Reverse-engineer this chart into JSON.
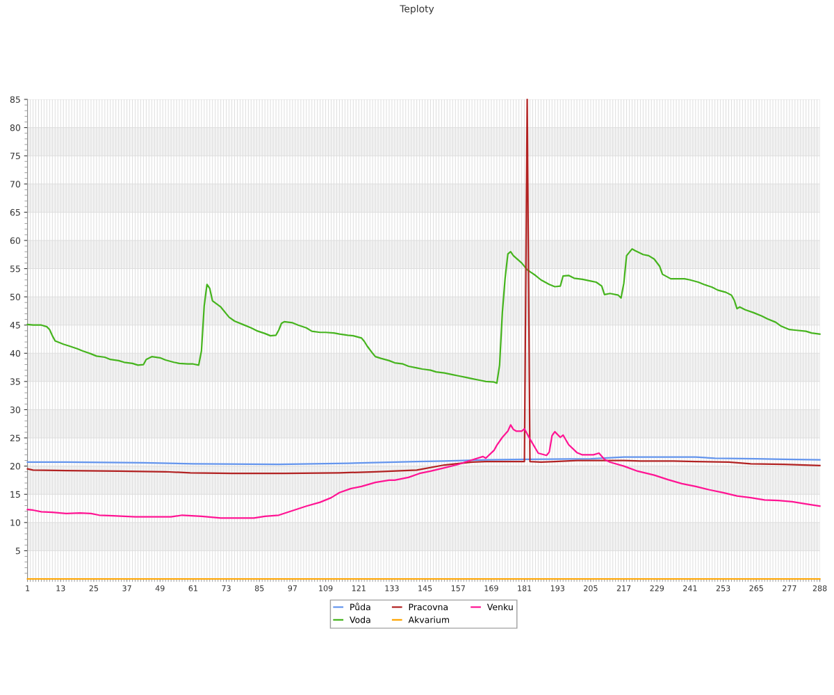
{
  "chart_data": {
    "type": "line",
    "title": "Teploty",
    "xlim": [
      1,
      288
    ],
    "xticks": [
      1,
      13,
      25,
      37,
      49,
      61,
      73,
      85,
      97,
      109,
      121,
      133,
      145,
      157,
      169,
      181,
      193,
      205,
      217,
      229,
      241,
      253,
      265,
      277,
      288
    ],
    "ylim": [
      0,
      85
    ],
    "yticks": [
      5,
      10,
      15,
      20,
      25,
      30,
      35,
      40,
      45,
      50,
      55,
      60,
      65,
      70,
      75,
      80,
      85
    ],
    "grid": true,
    "legend": "bottom",
    "marker": "none",
    "line_style": "solid",
    "series": [
      {
        "name": "Půda",
        "color": "#6495ed",
        "x": [
          1,
          15,
          43,
          61,
          92,
          117,
          142,
          152,
          167,
          182,
          205,
          217,
          243,
          250,
          265,
          275,
          288
        ],
        "values": [
          20.7,
          20.7,
          20.6,
          20.4,
          20.3,
          20.5,
          20.8,
          20.9,
          21.1,
          21.2,
          21.3,
          21.6,
          21.6,
          21.4,
          21.3,
          21.2,
          21.1
        ]
      },
      {
        "name": "Voda",
        "color": "#46b41e",
        "x": [
          1,
          3,
          6,
          8,
          9,
          10,
          11,
          14,
          16,
          19,
          21,
          24,
          26,
          29,
          31,
          34,
          36,
          39,
          41,
          43,
          44,
          46,
          49,
          51,
          54,
          56,
          59,
          61,
          63,
          64,
          65,
          66,
          67,
          68,
          71,
          74,
          76,
          79,
          82,
          84,
          87,
          89,
          91,
          92,
          93,
          94,
          97,
          99,
          102,
          104,
          107,
          109,
          112,
          114,
          117,
          119,
          122,
          123,
          124,
          126,
          127,
          129,
          132,
          134,
          137,
          139,
          142,
          144,
          147,
          149,
          152,
          155,
          157,
          160,
          162,
          165,
          167,
          170,
          171,
          172,
          173,
          174,
          175,
          176,
          177,
          180,
          182,
          185,
          187,
          190,
          192,
          194,
          195,
          197,
          199,
          202,
          205,
          207,
          209,
          210,
          212,
          215,
          216,
          217,
          218,
          220,
          221,
          224,
          226,
          228,
          230,
          231,
          234,
          236,
          239,
          241,
          244,
          246,
          249,
          251,
          254,
          256,
          257,
          258,
          259,
          261,
          264,
          267,
          269,
          272,
          274,
          277,
          279,
          283,
          285,
          288
        ],
        "values": [
          45.1,
          45.0,
          45.0,
          44.7,
          44.2,
          43.1,
          42.2,
          41.6,
          41.3,
          40.8,
          40.4,
          39.9,
          39.5,
          39.3,
          38.9,
          38.7,
          38.4,
          38.2,
          37.9,
          38.0,
          38.9,
          39.4,
          39.2,
          38.8,
          38.4,
          38.2,
          38.1,
          38.1,
          37.9,
          40.4,
          48.4,
          52.2,
          51.5,
          49.3,
          48.2,
          46.4,
          45.7,
          45.1,
          44.5,
          44.0,
          43.5,
          43.1,
          43.2,
          44.1,
          45.3,
          45.6,
          45.4,
          45.0,
          44.5,
          43.9,
          43.7,
          43.7,
          43.6,
          43.4,
          43.2,
          43.1,
          42.7,
          42.1,
          41.3,
          40.0,
          39.4,
          39.1,
          38.7,
          38.3,
          38.1,
          37.7,
          37.4,
          37.2,
          37.0,
          36.7,
          36.5,
          36.2,
          36.0,
          35.7,
          35.5,
          35.2,
          35.0,
          34.9,
          34.7,
          37.9,
          47.2,
          53.3,
          57.6,
          58.0,
          57.3,
          56.0,
          54.8,
          53.8,
          53.0,
          52.2,
          51.8,
          51.9,
          53.7,
          53.8,
          53.3,
          53.1,
          52.8,
          52.6,
          51.9,
          50.4,
          50.6,
          50.3,
          49.8,
          52.4,
          57.3,
          58.5,
          58.2,
          57.5,
          57.3,
          56.7,
          55.4,
          54.0,
          53.2,
          53.2,
          53.2,
          53.0,
          52.6,
          52.2,
          51.7,
          51.2,
          50.8,
          50.3,
          49.4,
          47.9,
          48.2,
          47.7,
          47.2,
          46.6,
          46.1,
          45.5,
          44.8,
          44.2,
          44.1,
          43.9,
          43.6,
          43.4
        ]
      },
      {
        "name": "Pracovna",
        "color": "#b22222",
        "x": [
          1,
          3,
          15,
          34,
          51,
          60,
          75,
          94,
          114,
          127,
          142,
          152,
          162,
          167,
          181,
          182,
          183,
          187,
          192,
          200,
          217,
          223,
          235,
          243,
          255,
          263,
          275,
          288
        ],
        "values": [
          19.5,
          19.3,
          19.2,
          19.1,
          19.0,
          18.8,
          18.7,
          18.7,
          18.8,
          19.0,
          19.3,
          20.2,
          20.7,
          20.8,
          20.8,
          85,
          20.8,
          20.7,
          20.8,
          21.0,
          21.0,
          20.9,
          20.9,
          20.8,
          20.7,
          20.4,
          20.3,
          20.1
        ]
      },
      {
        "name": "Akvarium",
        "color": "#ffa500",
        "x": [
          1,
          288
        ],
        "values": [
          0,
          0
        ]
      },
      {
        "name": "Venku",
        "color": "#ff1493",
        "x": [
          1,
          3,
          6,
          10,
          15,
          20,
          24,
          27,
          32,
          40,
          53,
          57,
          64,
          71,
          83,
          87,
          92,
          97,
          102,
          107,
          111,
          114,
          118,
          122,
          127,
          132,
          134,
          139,
          143,
          147,
          152,
          157,
          162,
          166,
          167,
          170,
          171,
          173,
          175,
          176,
          177,
          178,
          180,
          181,
          183,
          186,
          189,
          190,
          191,
          192,
          194,
          195,
          197,
          200,
          202,
          206,
          208,
          210,
          212,
          217,
          222,
          228,
          233,
          238,
          243,
          248,
          253,
          258,
          263,
          268,
          273,
          278,
          283,
          288
        ],
        "values": [
          12.3,
          12.2,
          11.9,
          11.8,
          11.6,
          11.7,
          11.6,
          11.3,
          11.2,
          11.0,
          11.0,
          11.3,
          11.1,
          10.8,
          10.8,
          11.1,
          11.3,
          12.1,
          12.9,
          13.6,
          14.4,
          15.3,
          16.0,
          16.4,
          17.1,
          17.5,
          17.5,
          18.0,
          18.7,
          19.1,
          19.7,
          20.3,
          21.1,
          21.7,
          21.4,
          22.8,
          23.7,
          25.1,
          26.2,
          27.3,
          26.5,
          26.2,
          26.2,
          26.6,
          24.8,
          22.3,
          21.9,
          22.5,
          25.4,
          26.1,
          25.1,
          25.5,
          23.8,
          22.4,
          22.0,
          22.0,
          22.3,
          21.2,
          20.7,
          20.0,
          19.1,
          18.4,
          17.6,
          16.9,
          16.4,
          15.8,
          15.3,
          14.7,
          14.4,
          14.0,
          13.9,
          13.7,
          13.3,
          12.9
        ]
      }
    ]
  }
}
